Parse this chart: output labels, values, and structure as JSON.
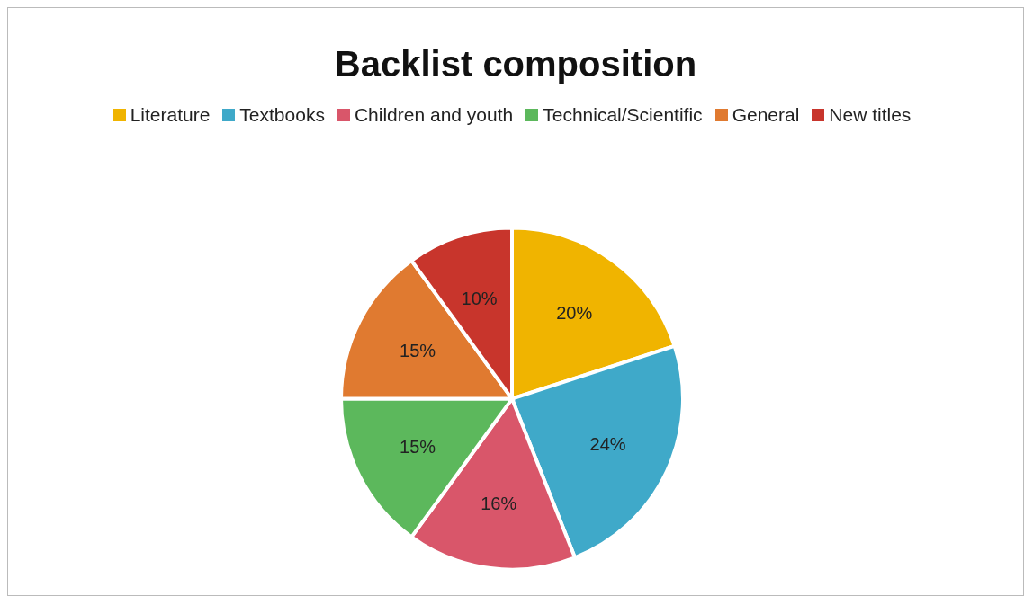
{
  "chart_data": {
    "type": "pie",
    "title": "Backlist composition",
    "categories": [
      "Literature",
      "Textbooks",
      "Children and youth",
      "Technical/Scientific",
      "General",
      "New titles"
    ],
    "values": [
      20,
      24,
      16,
      15,
      15,
      10
    ],
    "value_labels": [
      "20%",
      "24%",
      "16%",
      "15%",
      "15%",
      "10%"
    ],
    "colors": [
      "#f0b400",
      "#3fa9c9",
      "#d9566a",
      "#5cb85c",
      "#e07a30",
      "#c8352c"
    ],
    "legend": "top"
  }
}
